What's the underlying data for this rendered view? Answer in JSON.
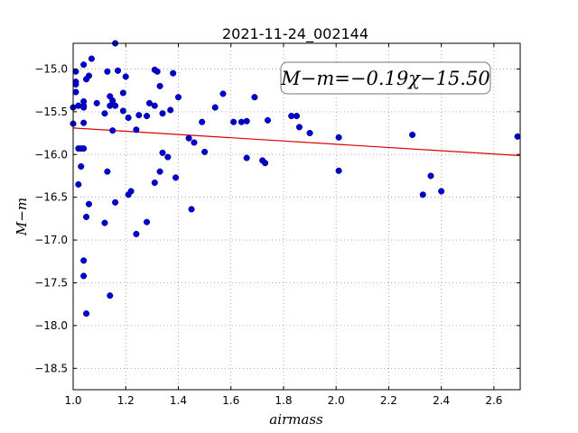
{
  "chart_data": {
    "type": "scatter",
    "title": "2021-11-24_002144",
    "xlabel": "airmass",
    "ylabel": "M−m",
    "xlim": [
      1.0,
      2.7
    ],
    "ylim": [
      -18.75,
      -14.7
    ],
    "y_inverted": true,
    "grid": true,
    "xticks": [
      1.0,
      1.2,
      1.4,
      1.6,
      1.8,
      2.0,
      2.2,
      2.4,
      2.6
    ],
    "xtick_labels": [
      "1.0",
      "1.2",
      "1.4",
      "1.6",
      "1.8",
      "2.0",
      "2.2",
      "2.4",
      "2.6"
    ],
    "yticks": [
      -15.0,
      -15.5,
      -16.0,
      -16.5,
      -17.0,
      -17.5,
      -18.0,
      -18.5
    ],
    "ytick_labels": [
      "−15.0",
      "−15.5",
      "−16.0",
      "−16.5",
      "−17.0",
      "−17.5",
      "−18.0",
      "−18.5"
    ],
    "series": [
      {
        "color": "#0000cc",
        "x": [
          1.0,
          1.01,
          1.01,
          1.01,
          1.0,
          1.01,
          1.02,
          1.02,
          1.03,
          1.04,
          1.04,
          1.04,
          1.04,
          1.04,
          1.05,
          1.06,
          1.07,
          1.03,
          1.04,
          1.02,
          1.05,
          1.06,
          1.04,
          1.04,
          1.05,
          1.09,
          1.12,
          1.13,
          1.14,
          1.14,
          1.15,
          1.16,
          1.16,
          1.17,
          1.19,
          1.19,
          1.2,
          1.21,
          1.15,
          1.13,
          1.12,
          1.16,
          1.14,
          1.22,
          1.21,
          1.24,
          1.25,
          1.28,
          1.29,
          1.31,
          1.31,
          1.32,
          1.33,
          1.34,
          1.34,
          1.36,
          1.37,
          1.38,
          1.4,
          1.39,
          1.33,
          1.31,
          1.24,
          1.28,
          1.44,
          1.46,
          1.45,
          1.49,
          1.5,
          1.54,
          1.57,
          1.61,
          1.64,
          1.66,
          1.69,
          1.66,
          1.72,
          1.73,
          1.74,
          1.83,
          1.85,
          1.86,
          1.9,
          2.01,
          2.01,
          2.29,
          2.33,
          2.36,
          2.4,
          2.69
        ],
        "y": [
          -15.45,
          -15.18,
          -15.15,
          -15.27,
          -15.64,
          -15.03,
          -15.43,
          -15.93,
          -16.14,
          -15.38,
          -15.43,
          -15.45,
          -14.95,
          -15.63,
          -15.12,
          -15.08,
          -14.88,
          -15.93,
          -15.93,
          -16.35,
          -16.73,
          -16.58,
          -17.24,
          -17.42,
          -17.86,
          -15.4,
          -15.52,
          -15.03,
          -15.32,
          -15.43,
          -15.37,
          -15.43,
          -14.7,
          -15.02,
          -15.28,
          -15.49,
          -15.09,
          -15.57,
          -15.72,
          -16.2,
          -16.8,
          -16.56,
          -17.65,
          -16.43,
          -16.47,
          -15.71,
          -15.54,
          -15.55,
          -15.4,
          -15.01,
          -15.43,
          -15.03,
          -15.2,
          -15.52,
          -15.98,
          -16.03,
          -15.48,
          -15.05,
          -15.33,
          -16.27,
          -16.2,
          -16.33,
          -16.93,
          -16.79,
          -15.81,
          -15.86,
          -16.64,
          -15.62,
          -15.97,
          -15.45,
          -15.29,
          -15.62,
          -15.62,
          -15.61,
          -15.33,
          -16.04,
          -16.07,
          -16.1,
          -15.6,
          -15.55,
          -15.55,
          -15.68,
          -15.75,
          -15.8,
          -16.19,
          -15.77,
          -16.47,
          -16.25,
          -16.43,
          -15.79
        ]
      }
    ],
    "fit_line": {
      "slope": -0.19,
      "intercept": -15.5,
      "color": "#dd0000",
      "x_range": [
        1.0,
        2.7
      ]
    },
    "annotation": {
      "text": "M−m=−0.19χ−15.50",
      "placement": "top-right"
    }
  }
}
